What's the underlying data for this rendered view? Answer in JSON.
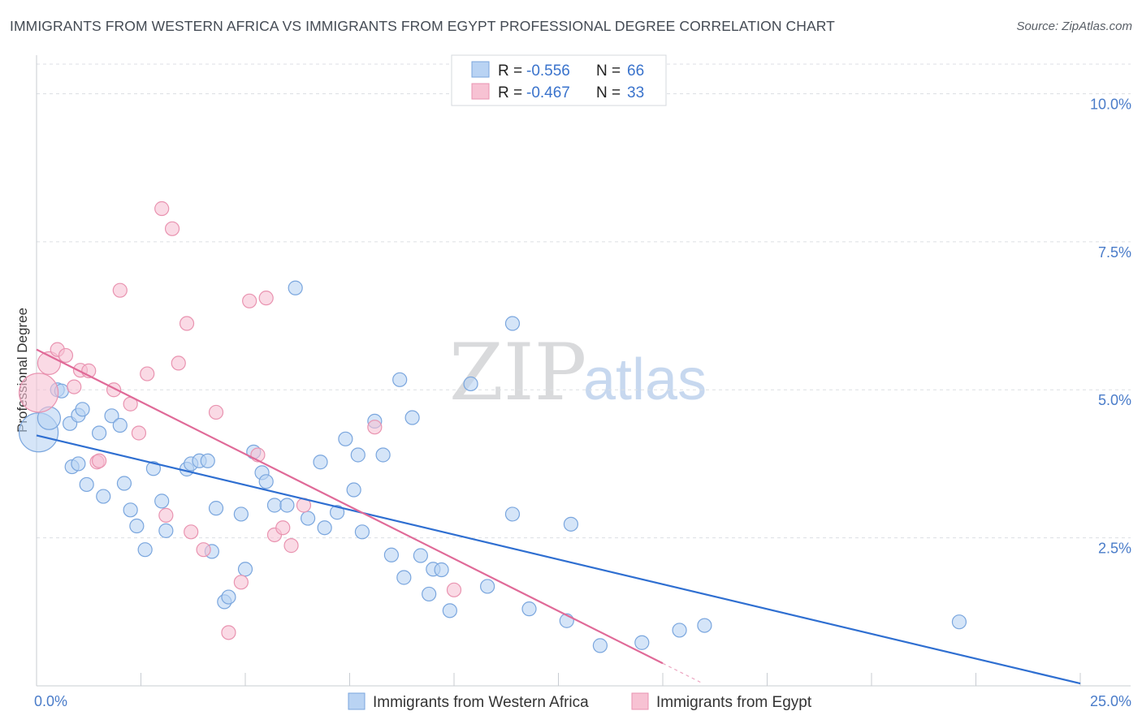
{
  "title": "IMMIGRANTS FROM WESTERN AFRICA VS IMMIGRANTS FROM EGYPT PROFESSIONAL DEGREE CORRELATION CHART",
  "source": "Source: ZipAtlas.com",
  "watermark": {
    "zip": "ZIP",
    "atlas": "atlas"
  },
  "legend": {
    "rows": [
      {
        "r_label": "R = ",
        "r_value": "-0.556",
        "n_label": "N = ",
        "n_value": "66"
      },
      {
        "r_label": "R = ",
        "r_value": "-0.467",
        "n_label": "N = ",
        "n_value": "33"
      }
    ]
  },
  "bottom_legend": [
    {
      "label": "Immigrants from Western Africa"
    },
    {
      "label": "Immigrants from Egypt"
    }
  ],
  "colors": {
    "blue_fill": "#b9d3f3",
    "blue_stroke": "#7aa6de",
    "blue_line": "#2f6fd1",
    "pink_fill": "#f7c2d3",
    "pink_stroke": "#e993b0",
    "pink_line": "#e06a98",
    "grid": "#dcdfe4",
    "axis_text": "#4a7cc9"
  },
  "chart_data": {
    "type": "scatter",
    "title": "IMMIGRANTS FROM WESTERN AFRICA VS IMMIGRANTS FROM EGYPT PROFESSIONAL DEGREE CORRELATION CHART",
    "xlabel": "",
    "ylabel": "Professional Degree",
    "xlim": [
      0,
      25
    ],
    "ylim": [
      0,
      10.5
    ],
    "x_tick_labels": [
      "0.0%",
      "25.0%"
    ],
    "y_ticks": [
      2.5,
      5.0,
      7.5,
      10.0
    ],
    "y_tick_labels": [
      "2.5%",
      "5.0%",
      "7.5%",
      "10.0%"
    ],
    "grid": "horizontal dashed",
    "series": [
      {
        "name": "Immigrants from Western Africa",
        "color": "blue",
        "R": -0.556,
        "N": 66,
        "trendline": {
          "x": [
            0,
            25
          ],
          "y": [
            4.23,
            0.04
          ]
        },
        "points": [
          {
            "x": 0.05,
            "y": 4.28,
            "s": 3
          },
          {
            "x": 0.3,
            "y": 4.52,
            "s": 2
          },
          {
            "x": 0.5,
            "y": 5.0,
            "s": 1
          },
          {
            "x": 0.6,
            "y": 4.98,
            "s": 1
          },
          {
            "x": 0.8,
            "y": 4.43,
            "s": 1
          },
          {
            "x": 1.0,
            "y": 4.57,
            "s": 1
          },
          {
            "x": 1.1,
            "y": 4.67,
            "s": 1
          },
          {
            "x": 0.85,
            "y": 3.7,
            "s": 1
          },
          {
            "x": 1.0,
            "y": 3.75,
            "s": 1
          },
          {
            "x": 1.2,
            "y": 3.4,
            "s": 1
          },
          {
            "x": 1.5,
            "y": 4.27,
            "s": 1
          },
          {
            "x": 1.6,
            "y": 3.2,
            "s": 1
          },
          {
            "x": 1.8,
            "y": 4.56,
            "s": 1
          },
          {
            "x": 2.0,
            "y": 4.4,
            "s": 1
          },
          {
            "x": 2.1,
            "y": 3.42,
            "s": 1
          },
          {
            "x": 2.25,
            "y": 2.97,
            "s": 1
          },
          {
            "x": 2.4,
            "y": 2.7,
            "s": 1
          },
          {
            "x": 2.6,
            "y": 2.3,
            "s": 1
          },
          {
            "x": 2.8,
            "y": 3.67,
            "s": 1
          },
          {
            "x": 3.0,
            "y": 3.12,
            "s": 1
          },
          {
            "x": 3.1,
            "y": 2.62,
            "s": 1
          },
          {
            "x": 3.6,
            "y": 3.66,
            "s": 1
          },
          {
            "x": 3.7,
            "y": 3.75,
            "s": 1
          },
          {
            "x": 3.9,
            "y": 3.8,
            "s": 1
          },
          {
            "x": 4.1,
            "y": 3.8,
            "s": 1
          },
          {
            "x": 4.2,
            "y": 2.27,
            "s": 1
          },
          {
            "x": 4.3,
            "y": 3.0,
            "s": 1
          },
          {
            "x": 4.5,
            "y": 1.42,
            "s": 1
          },
          {
            "x": 4.9,
            "y": 2.9,
            "s": 1
          },
          {
            "x": 5.0,
            "y": 1.97,
            "s": 1
          },
          {
            "x": 5.2,
            "y": 3.95,
            "s": 1
          },
          {
            "x": 5.4,
            "y": 3.6,
            "s": 1
          },
          {
            "x": 5.5,
            "y": 3.45,
            "s": 1
          },
          {
            "x": 5.7,
            "y": 3.05,
            "s": 1
          },
          {
            "x": 4.6,
            "y": 1.5,
            "s": 1
          },
          {
            "x": 6.0,
            "y": 3.05,
            "s": 1
          },
          {
            "x": 6.2,
            "y": 6.72,
            "s": 1
          },
          {
            "x": 6.5,
            "y": 2.83,
            "s": 1
          },
          {
            "x": 6.8,
            "y": 3.78,
            "s": 1
          },
          {
            "x": 6.9,
            "y": 2.67,
            "s": 1
          },
          {
            "x": 7.2,
            "y": 2.93,
            "s": 1
          },
          {
            "x": 7.4,
            "y": 4.17,
            "s": 1
          },
          {
            "x": 7.6,
            "y": 3.31,
            "s": 1
          },
          {
            "x": 7.8,
            "y": 2.6,
            "s": 1
          },
          {
            "x": 7.7,
            "y": 3.9,
            "s": 1
          },
          {
            "x": 8.1,
            "y": 4.47,
            "s": 1
          },
          {
            "x": 8.3,
            "y": 3.9,
            "s": 1
          },
          {
            "x": 8.5,
            "y": 2.21,
            "s": 1
          },
          {
            "x": 8.7,
            "y": 5.17,
            "s": 1
          },
          {
            "x": 8.8,
            "y": 1.83,
            "s": 1
          },
          {
            "x": 9.0,
            "y": 4.53,
            "s": 1
          },
          {
            "x": 9.2,
            "y": 2.2,
            "s": 1
          },
          {
            "x": 9.5,
            "y": 1.97,
            "s": 1
          },
          {
            "x": 9.4,
            "y": 1.55,
            "s": 1
          },
          {
            "x": 9.7,
            "y": 1.96,
            "s": 1
          },
          {
            "x": 9.9,
            "y": 1.27,
            "s": 1
          },
          {
            "x": 10.4,
            "y": 5.1,
            "s": 1
          },
          {
            "x": 10.8,
            "y": 1.68,
            "s": 1
          },
          {
            "x": 11.4,
            "y": 6.12,
            "s": 1
          },
          {
            "x": 11.4,
            "y": 2.9,
            "s": 1
          },
          {
            "x": 11.8,
            "y": 1.3,
            "s": 1
          },
          {
            "x": 12.8,
            "y": 2.73,
            "s": 1
          },
          {
            "x": 12.7,
            "y": 1.1,
            "s": 1
          },
          {
            "x": 13.5,
            "y": 0.68,
            "s": 1
          },
          {
            "x": 14.5,
            "y": 0.73,
            "s": 1
          },
          {
            "x": 15.4,
            "y": 0.94,
            "s": 1
          },
          {
            "x": 16.0,
            "y": 1.02,
            "s": 1
          },
          {
            "x": 22.1,
            "y": 1.08,
            "s": 1
          }
        ]
      },
      {
        "name": "Immigrants from Egypt",
        "color": "pink",
        "R": -0.467,
        "N": 33,
        "trendline": {
          "x": [
            0,
            15.0
          ],
          "y": [
            5.68,
            0.38
          ],
          "dashed_extension_to_x": 15.9
        },
        "points": [
          {
            "x": 0.05,
            "y": 4.95,
            "s": 3
          },
          {
            "x": 0.3,
            "y": 5.45,
            "s": 2
          },
          {
            "x": 0.5,
            "y": 5.68,
            "s": 1
          },
          {
            "x": 0.7,
            "y": 5.58,
            "s": 1
          },
          {
            "x": 0.9,
            "y": 5.05,
            "s": 1
          },
          {
            "x": 1.05,
            "y": 5.33,
            "s": 1
          },
          {
            "x": 1.25,
            "y": 5.32,
            "s": 1
          },
          {
            "x": 1.45,
            "y": 3.78,
            "s": 1
          },
          {
            "x": 1.5,
            "y": 3.8,
            "s": 1
          },
          {
            "x": 1.85,
            "y": 5.0,
            "s": 1
          },
          {
            "x": 2.0,
            "y": 6.68,
            "s": 1
          },
          {
            "x": 2.25,
            "y": 4.76,
            "s": 1
          },
          {
            "x": 2.45,
            "y": 4.27,
            "s": 1
          },
          {
            "x": 2.65,
            "y": 5.27,
            "s": 1
          },
          {
            "x": 3.0,
            "y": 8.06,
            "s": 1
          },
          {
            "x": 3.1,
            "y": 2.88,
            "s": 1
          },
          {
            "x": 3.25,
            "y": 7.72,
            "s": 1
          },
          {
            "x": 3.4,
            "y": 5.45,
            "s": 1
          },
          {
            "x": 3.6,
            "y": 6.12,
            "s": 1
          },
          {
            "x": 3.7,
            "y": 2.6,
            "s": 1
          },
          {
            "x": 4.0,
            "y": 2.3,
            "s": 1
          },
          {
            "x": 4.3,
            "y": 4.62,
            "s": 1
          },
          {
            "x": 4.6,
            "y": 0.9,
            "s": 1
          },
          {
            "x": 4.9,
            "y": 1.75,
            "s": 1
          },
          {
            "x": 5.1,
            "y": 6.5,
            "s": 1
          },
          {
            "x": 5.3,
            "y": 3.9,
            "s": 1
          },
          {
            "x": 5.5,
            "y": 6.55,
            "s": 1
          },
          {
            "x": 5.7,
            "y": 2.55,
            "s": 1
          },
          {
            "x": 5.9,
            "y": 2.67,
            "s": 1
          },
          {
            "x": 6.1,
            "y": 2.37,
            "s": 1
          },
          {
            "x": 6.4,
            "y": 3.05,
            "s": 1
          },
          {
            "x": 8.1,
            "y": 4.37,
            "s": 1
          },
          {
            "x": 10.0,
            "y": 1.62,
            "s": 1
          }
        ]
      }
    ]
  }
}
